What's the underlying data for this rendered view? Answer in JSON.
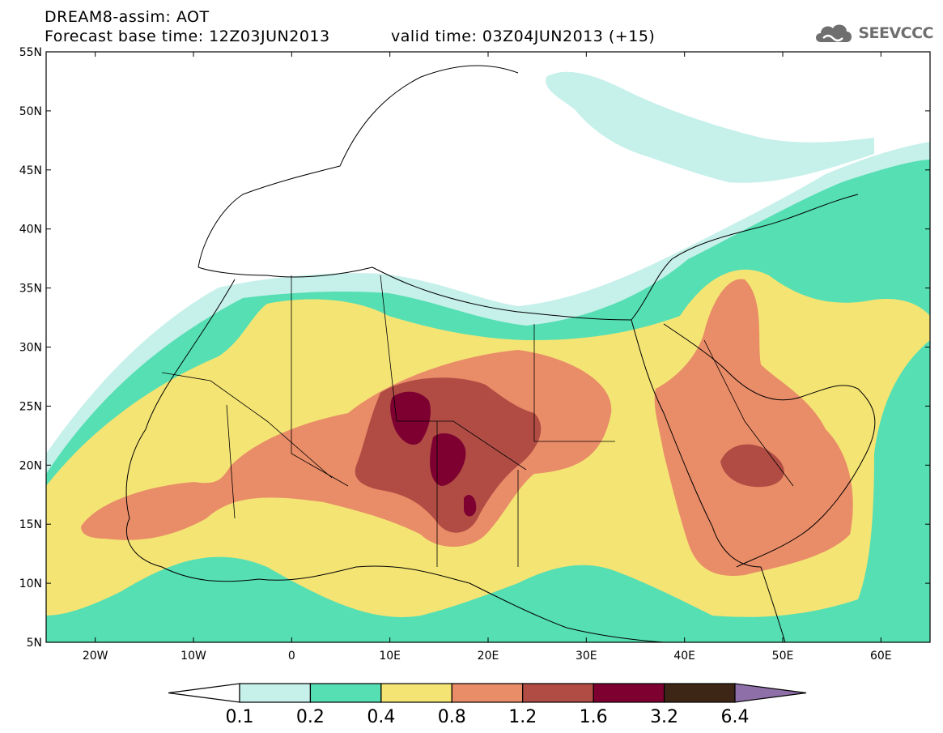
{
  "header": {
    "line1": "DREAM8-assim: AOT",
    "forecast_base": "Forecast base time: 12Z03JUN2013",
    "valid_time": "valid time: 03Z04JUN2013 (+15)",
    "logo_text": "SEEVCCC"
  },
  "map": {
    "lon_range": [
      -25,
      65
    ],
    "lat_range": [
      5,
      55
    ],
    "x_ticks": [
      {
        "lon": -20,
        "label": "20W"
      },
      {
        "lon": -10,
        "label": "10W"
      },
      {
        "lon": 0,
        "label": "0"
      },
      {
        "lon": 10,
        "label": "10E"
      },
      {
        "lon": 20,
        "label": "20E"
      },
      {
        "lon": 30,
        "label": "30E"
      },
      {
        "lon": 40,
        "label": "40E"
      },
      {
        "lon": 50,
        "label": "50E"
      },
      {
        "lon": 60,
        "label": "60E"
      }
    ],
    "y_ticks": [
      {
        "lat": 5,
        "label": "5N"
      },
      {
        "lat": 10,
        "label": "10N"
      },
      {
        "lat": 15,
        "label": "15N"
      },
      {
        "lat": 20,
        "label": "20N"
      },
      {
        "lat": 25,
        "label": "25N"
      },
      {
        "lat": 30,
        "label": "30N"
      },
      {
        "lat": 35,
        "label": "35N"
      },
      {
        "lat": 40,
        "label": "40N"
      },
      {
        "lat": 45,
        "label": "45N"
      },
      {
        "lat": 50,
        "label": "50N"
      },
      {
        "lat": 55,
        "label": "55N"
      }
    ]
  },
  "colorbar": {
    "levels": [
      "0.1",
      "0.2",
      "0.4",
      "0.8",
      "1.2",
      "1.6",
      "3.2",
      "6.4"
    ],
    "colors": [
      "#ffffff",
      "#c6f0ea",
      "#55dfb3",
      "#f4e474",
      "#e98c68",
      "#b04c44",
      "#7d0031",
      "#3e2616",
      "#8e6fa8"
    ]
  }
}
